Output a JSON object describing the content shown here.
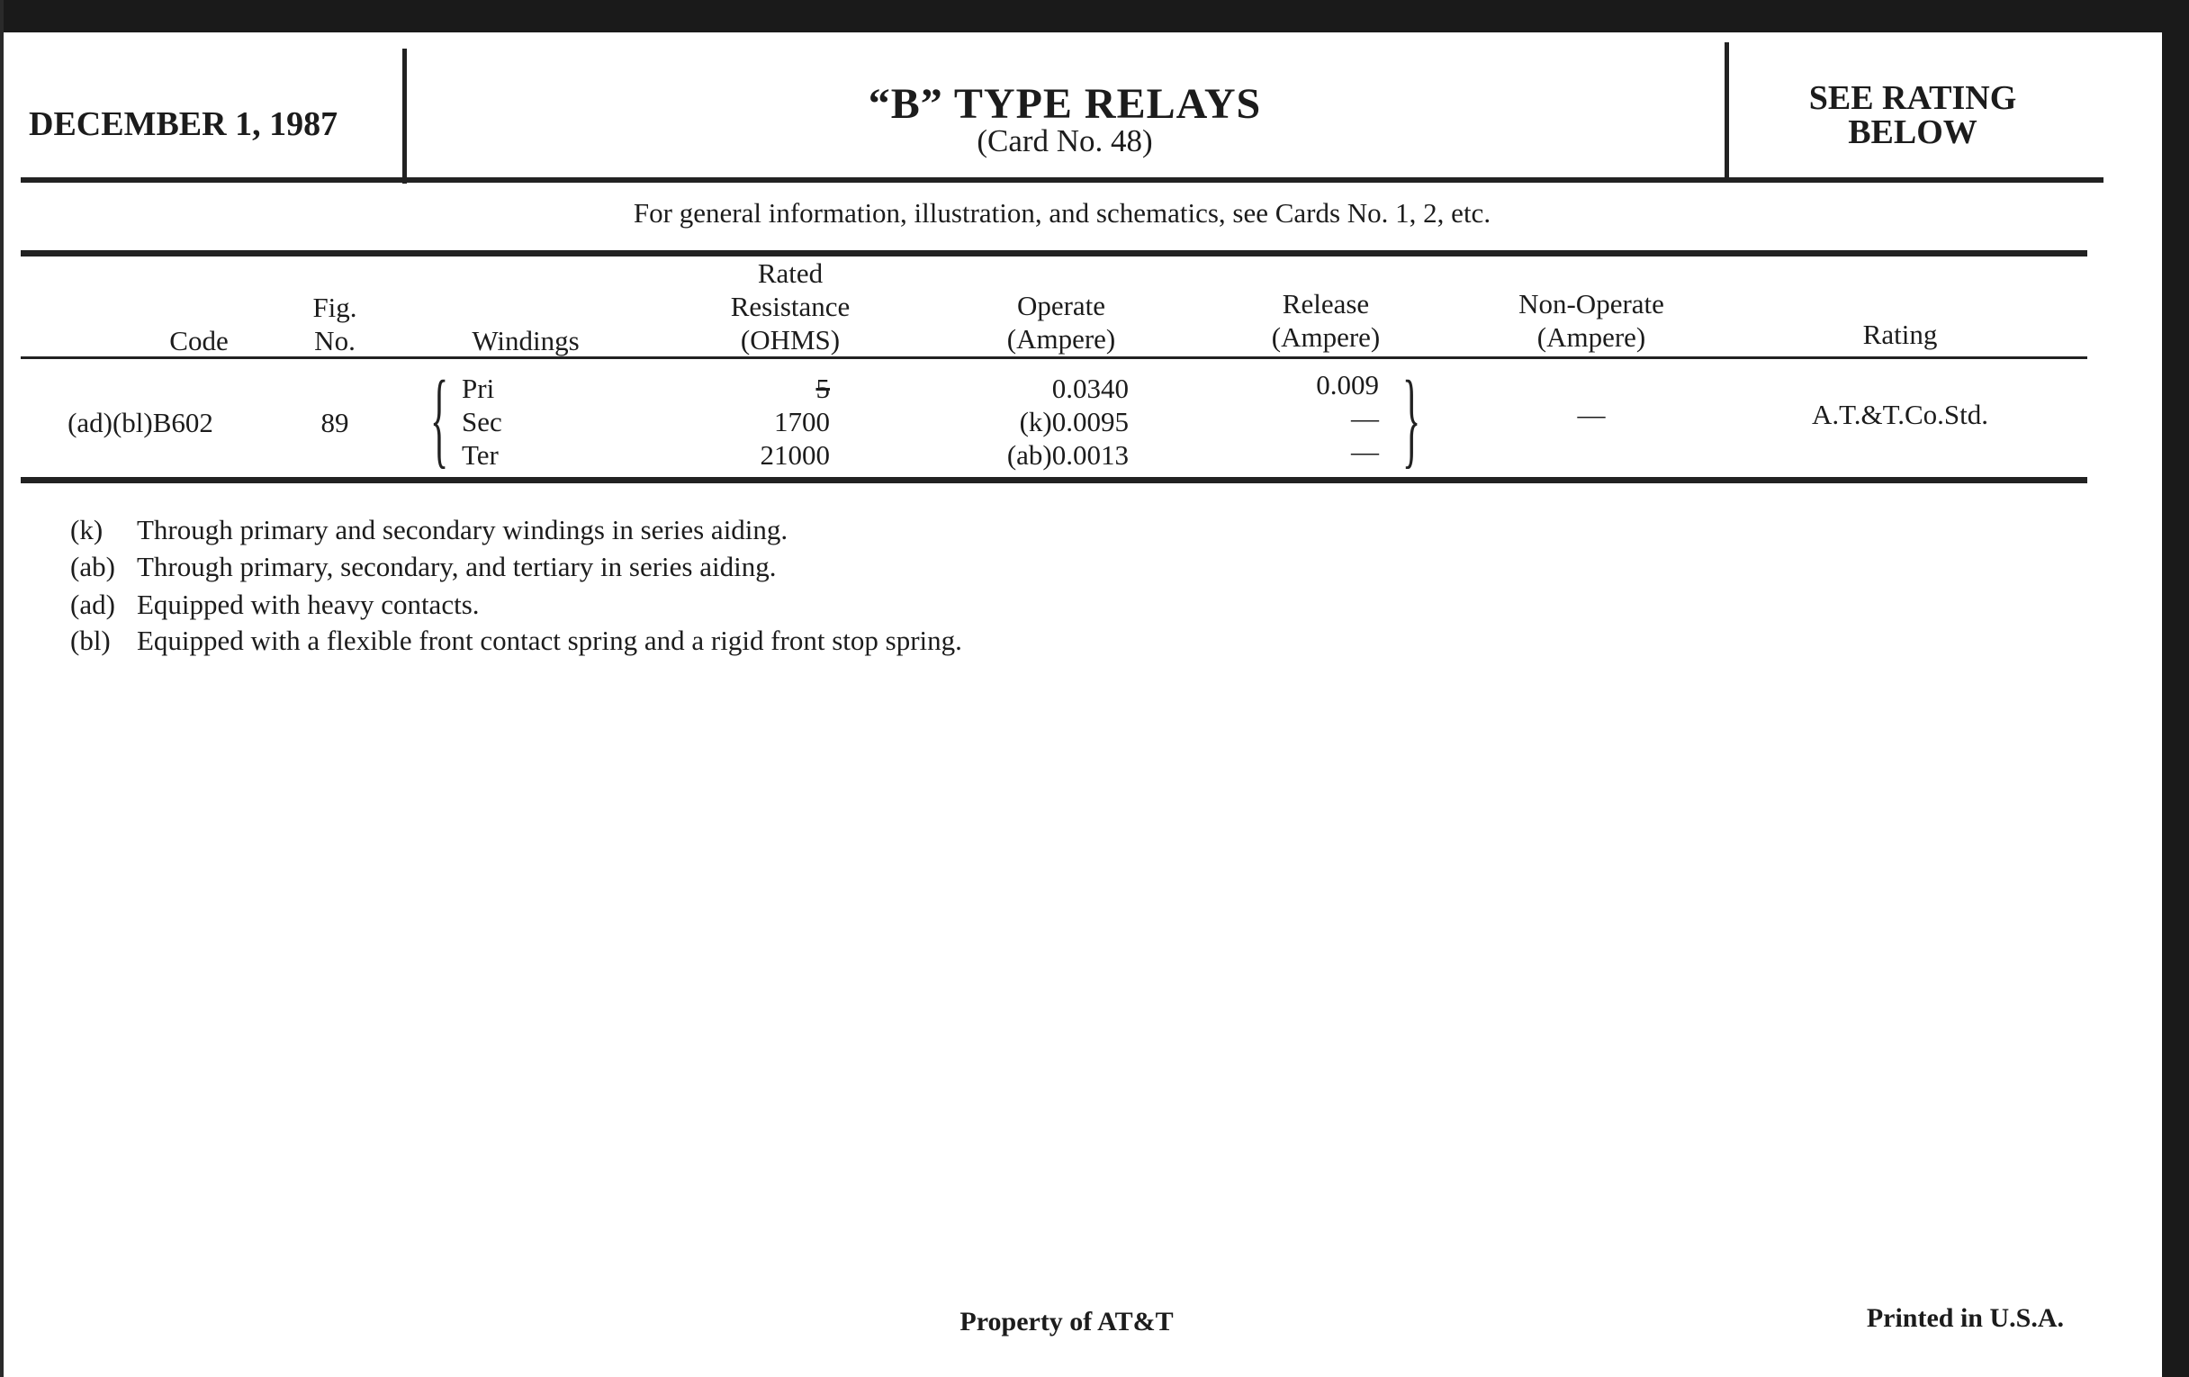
{
  "header": {
    "date": "DECEMBER 1, 1987",
    "title": "“B” TYPE RELAYS",
    "subtitle": "(Card No. 48)",
    "rating_note_line1": "SEE RATING",
    "rating_note_line2": "BELOW"
  },
  "general_info": "For general information, illustration, and schematics, see Cards No. 1, 2, etc.",
  "table": {
    "columns": {
      "code": "Code",
      "fig": [
        "Fig.",
        "No."
      ],
      "windings": "Windings",
      "resistance": [
        "Rated",
        "Resistance",
        "(OHMS)"
      ],
      "operate": [
        "Operate",
        "(Ampere)"
      ],
      "release": [
        "Release",
        "(Ampere)"
      ],
      "non_operate": [
        "Non-Operate",
        "(Ampere)"
      ],
      "rating": "Rating"
    },
    "rows": [
      {
        "code": "(ad)(bl)B602",
        "fig": "89",
        "windings": [
          "Pri",
          "Sec",
          "Ter"
        ],
        "resistance": [
          "5",
          "1700",
          "21000"
        ],
        "operate": [
          "0.0340",
          "(k)0.0095",
          "(ab)0.0013"
        ],
        "release": [
          "0.009",
          "—",
          "—"
        ],
        "non_operate": "—",
        "rating": "A.T.&T.Co.Std."
      }
    ]
  },
  "footnotes": [
    {
      "key": "(k)",
      "text": "Through primary and secondary windings in series aiding."
    },
    {
      "key": "(ab)",
      "text": "Through primary, secondary, and tertiary in series aiding."
    },
    {
      "key": "(ad)",
      "text": "Equipped with heavy contacts."
    },
    {
      "key": "(bl)",
      "text": "Equipped with a flexible front contact spring and a rigid front stop spring."
    }
  ],
  "footer": {
    "property": "Property of AT&T",
    "printed": "Printed in U.S.A."
  }
}
